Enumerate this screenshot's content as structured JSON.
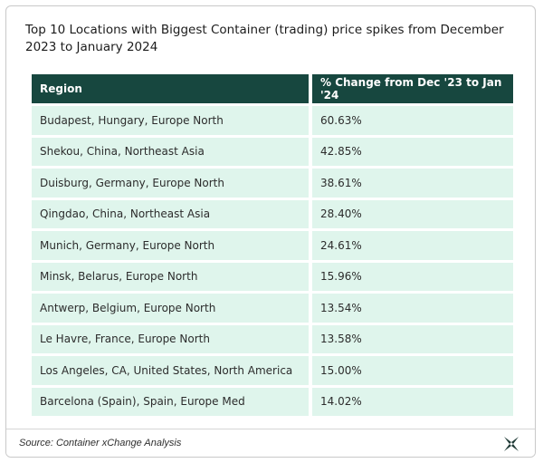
{
  "chart_data": {
    "type": "table",
    "title": "Top 10 Locations with Biggest Container (trading) price spikes from December 2023 to January 2024",
    "columns": [
      "Region",
      "% Change from Dec '23 to Jan '24"
    ],
    "rows": [
      [
        "Budapest, Hungary, Europe North",
        "60.63%"
      ],
      [
        "Shekou, China, Northeast Asia",
        "42.85%"
      ],
      [
        "Duisburg, Germany, Europe North",
        "38.61%"
      ],
      [
        "Qingdao, China, Northeast Asia",
        "28.40%"
      ],
      [
        "Munich, Germany, Europe North",
        "24.61%"
      ],
      [
        "Minsk, Belarus, Europe North",
        "15.96%"
      ],
      [
        "Antwerp, Belgium, Europe North",
        "13.54%"
      ],
      [
        "Le Havre, France, Europe North",
        "13.58%"
      ],
      [
        "Los Angeles, CA, United States, North America",
        "15.00%"
      ],
      [
        "Barcelona (Spain), Spain, Europe Med",
        "14.02%"
      ]
    ]
  },
  "footer": {
    "source": "Source: Container xChange Analysis",
    "logo_icon": "xchange-logo-icon"
  },
  "colors": {
    "header_bg": "#17473f",
    "row_bg": "#dff5ec"
  }
}
